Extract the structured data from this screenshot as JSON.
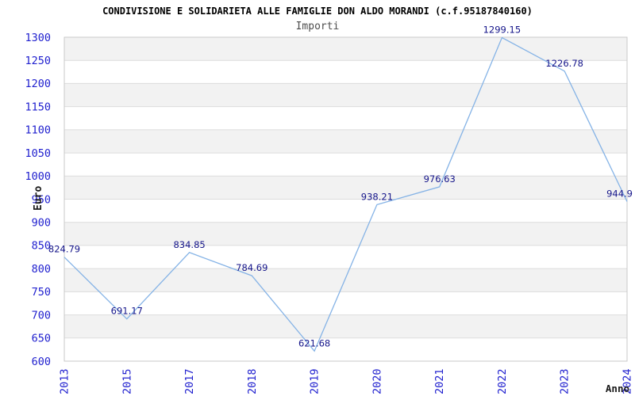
{
  "page": {
    "background": "#ffffff"
  },
  "chart_data": {
    "type": "line",
    "title": "CONDIVISIONE E SOLIDARIETA ALLE FAMIGLIE DON ALDO MORANDI (c.f.95187840160)",
    "subtitle": "Importi",
    "xlabel": "Anno",
    "ylabel": "Euro",
    "categories": [
      "2013",
      "2015",
      "2017",
      "2018",
      "2019",
      "2020",
      "2021",
      "2022",
      "2023",
      "2024"
    ],
    "series": [
      {
        "name": "Importi",
        "values": [
          824.79,
          691.17,
          834.85,
          784.69,
          621.68,
          938.21,
          976.63,
          1299.15,
          1226.78,
          944.9
        ]
      }
    ],
    "point_labels": [
      "824.79",
      "691.17",
      "834.85",
      "784.69",
      "621.68",
      "938.21",
      "976.63",
      "1299.15",
      "1226.78",
      "944.9"
    ],
    "ylim": [
      600,
      1300
    ],
    "ytick_step": 50,
    "ytick_labels": [
      "600",
      "650",
      "700",
      "750",
      "800",
      "850",
      "900",
      "950",
      "1000",
      "1050",
      "1100",
      "1150",
      "1200",
      "1250",
      "1300"
    ],
    "grid": "horizontal",
    "background_bands": "alternating-gray-white-from-top",
    "legend": "none",
    "marker": "none",
    "colors": {
      "line": "#85b3e6",
      "tick_label": "#2121cf",
      "value_label": "#15158a",
      "band": "#f2f2f2",
      "gridline": "#dcdcdc",
      "frame": "#c9c9c9",
      "title": "#000000",
      "subtitle": "#4d4d4d",
      "axis_title": "#1a1a1a"
    }
  }
}
